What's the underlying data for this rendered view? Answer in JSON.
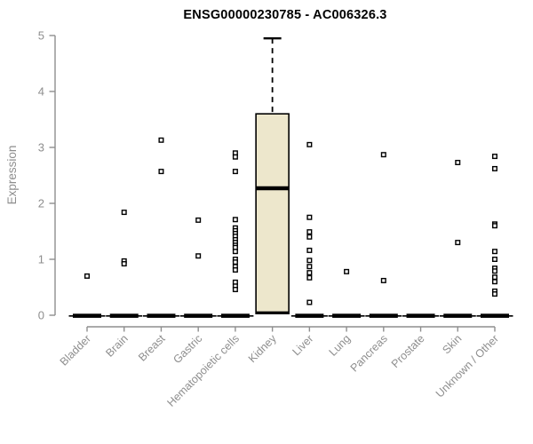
{
  "chart_data": {
    "type": "boxplot",
    "title": "ENSG00000230785 - AC006326.3",
    "ylabel": "Expression",
    "xlabel": "",
    "ylim": [
      0,
      5
    ],
    "yticks": [
      0,
      1,
      2,
      3,
      4,
      5
    ],
    "grid": false,
    "legend": "none",
    "categories": [
      "Bladder",
      "Brain",
      "Breast",
      "Gastric",
      "Hematopoietic cells",
      "Kidney",
      "Liver",
      "Lung",
      "Pancreas",
      "Prostate",
      "Skin",
      "Unknown / Other"
    ],
    "groups": [
      {
        "label": "Bladder",
        "box": {
          "min": 0,
          "q1": 0,
          "median": 0,
          "q3": 0,
          "max": 0
        },
        "points": [
          0.7
        ]
      },
      {
        "label": "Brain",
        "box": {
          "min": 0,
          "q1": 0,
          "median": 0,
          "q3": 0,
          "max": 0
        },
        "points": [
          1.84,
          0.97,
          0.92
        ]
      },
      {
        "label": "Breast",
        "box": {
          "min": 0,
          "q1": 0,
          "median": 0,
          "q3": 0,
          "max": 0
        },
        "points": [
          3.13,
          2.57
        ]
      },
      {
        "label": "Gastric",
        "box": {
          "min": 0,
          "q1": 0,
          "median": 0,
          "q3": 0,
          "max": 0
        },
        "points": [
          1.7,
          1.06
        ]
      },
      {
        "label": "Hematopoietic cells",
        "box": {
          "min": 0,
          "q1": 0,
          "median": 0,
          "q3": 0,
          "max": 0
        },
        "points": [
          2.9,
          2.83,
          2.57,
          1.71,
          1.56,
          1.51,
          1.46,
          1.41,
          1.35,
          1.3,
          1.25,
          1.21,
          1.14,
          1.0,
          0.95,
          0.87,
          0.81,
          0.59,
          0.52,
          0.46
        ]
      },
      {
        "label": "Kidney",
        "box": {
          "min": 0,
          "q1": 0.03,
          "median": 2.27,
          "q3": 3.6,
          "max": 4.95
        },
        "points": []
      },
      {
        "label": "Liver",
        "box": {
          "min": 0,
          "q1": 0,
          "median": 0,
          "q3": 0,
          "max": 0
        },
        "points": [
          3.05,
          1.75,
          1.49,
          1.4,
          1.16,
          0.98,
          0.87,
          0.76,
          0.67,
          0.23
        ]
      },
      {
        "label": "Lung",
        "box": {
          "min": 0,
          "q1": 0,
          "median": 0,
          "q3": 0,
          "max": 0
        },
        "points": [
          0.78
        ]
      },
      {
        "label": "Pancreas",
        "box": {
          "min": 0,
          "q1": 0,
          "median": 0,
          "q3": 0,
          "max": 0
        },
        "points": [
          2.87,
          0.62
        ]
      },
      {
        "label": "Prostate",
        "box": {
          "min": 0,
          "q1": 0,
          "median": 0,
          "q3": 0,
          "max": 0
        },
        "points": []
      },
      {
        "label": "Skin",
        "box": {
          "min": 0,
          "q1": 0,
          "median": 0,
          "q3": 0,
          "max": 0
        },
        "points": [
          2.73,
          1.3
        ]
      },
      {
        "label": "Unknown / Other",
        "box": {
          "min": 0,
          "q1": 0,
          "median": 0,
          "q3": 0,
          "max": 0
        },
        "points": [
          2.84,
          2.62,
          1.63,
          1.6,
          1.14,
          1.0,
          0.84,
          0.79,
          0.68,
          0.6,
          0.43,
          0.38
        ]
      }
    ],
    "colors": {
      "box_fill": "#ede7cc",
      "box_stroke": "#000000",
      "median": "#000000",
      "points": "#000000",
      "axis": "#8e8e8e",
      "tick_text": "#8e8e8e",
      "title_text": "#000000"
    }
  }
}
